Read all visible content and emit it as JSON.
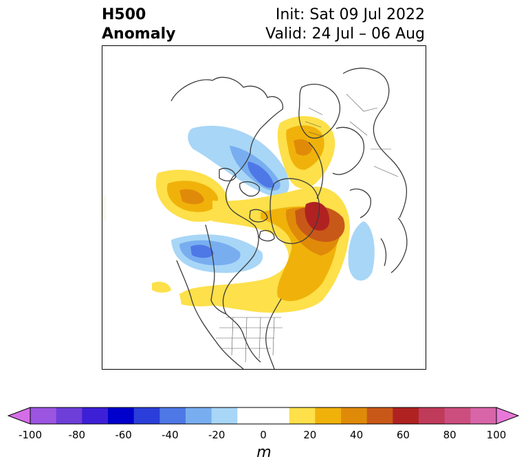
{
  "header": {
    "title_line1": "H500",
    "title_line2": "Anomaly",
    "init_label": "Init: Sat 09 Jul 2022",
    "valid_label": "Valid: 24 Jul – 06 Aug"
  },
  "colorbar": {
    "unit": "m",
    "ticks": [
      "-100",
      "-80",
      "-60",
      "-40",
      "-20",
      "0",
      "20",
      "40",
      "60",
      "80",
      "100"
    ],
    "range": [
      -100,
      100
    ],
    "step": 10,
    "colors": [
      "#d46ee8",
      "#9b55e0",
      "#6e3ed8",
      "#3d1fd6",
      "#0000cc",
      "#2a3ed9",
      "#4e78e6",
      "#78aef0",
      "#a8d6f6",
      "#ffffff",
      "#ffffff",
      "#fde04a",
      "#f0b20a",
      "#e08a0a",
      "#c85818",
      "#b02222",
      "#c03a5a",
      "#cc4e7e",
      "#d865a8",
      "#e878d8"
    ]
  }
}
